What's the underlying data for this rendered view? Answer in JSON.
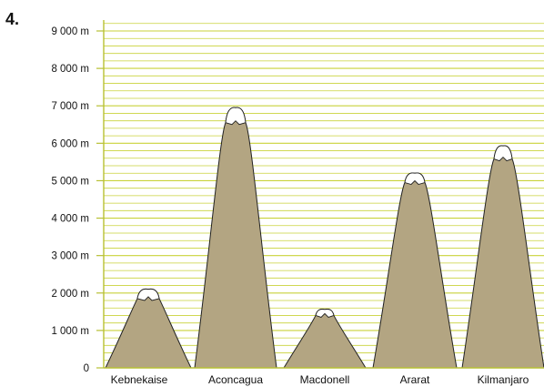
{
  "question_number": "4.",
  "colors": {
    "grid": "#c9d23a",
    "axis": "#b8c034",
    "mountain_fill": "#b3a582",
    "mountain_stroke": "#222222",
    "snow": "#ffffff"
  },
  "chart_data": {
    "type": "bar",
    "title": "",
    "xlabel": "",
    "ylabel": "",
    "ylim": [
      0,
      9300
    ],
    "grid": true,
    "minor_grid_step": 200,
    "y_ticks": [
      0,
      1000,
      2000,
      3000,
      4000,
      5000,
      6000,
      7000,
      8000,
      9000
    ],
    "y_tick_labels": [
      "0",
      "1 000 m",
      "2 000 m",
      "3 000 m",
      "4 000 m",
      "5 000 m",
      "6 000 m",
      "7 000 m",
      "8 000 m",
      "9 000 m"
    ],
    "categories": [
      "Kebnekaise",
      "Aconcagua",
      "Macdonell",
      "Ararat",
      "Kilmanjaro"
    ],
    "values": [
      2100,
      6950,
      1560,
      5200,
      5930
    ],
    "snowline": [
      1850,
      6550,
      1400,
      4950,
      5580
    ]
  }
}
